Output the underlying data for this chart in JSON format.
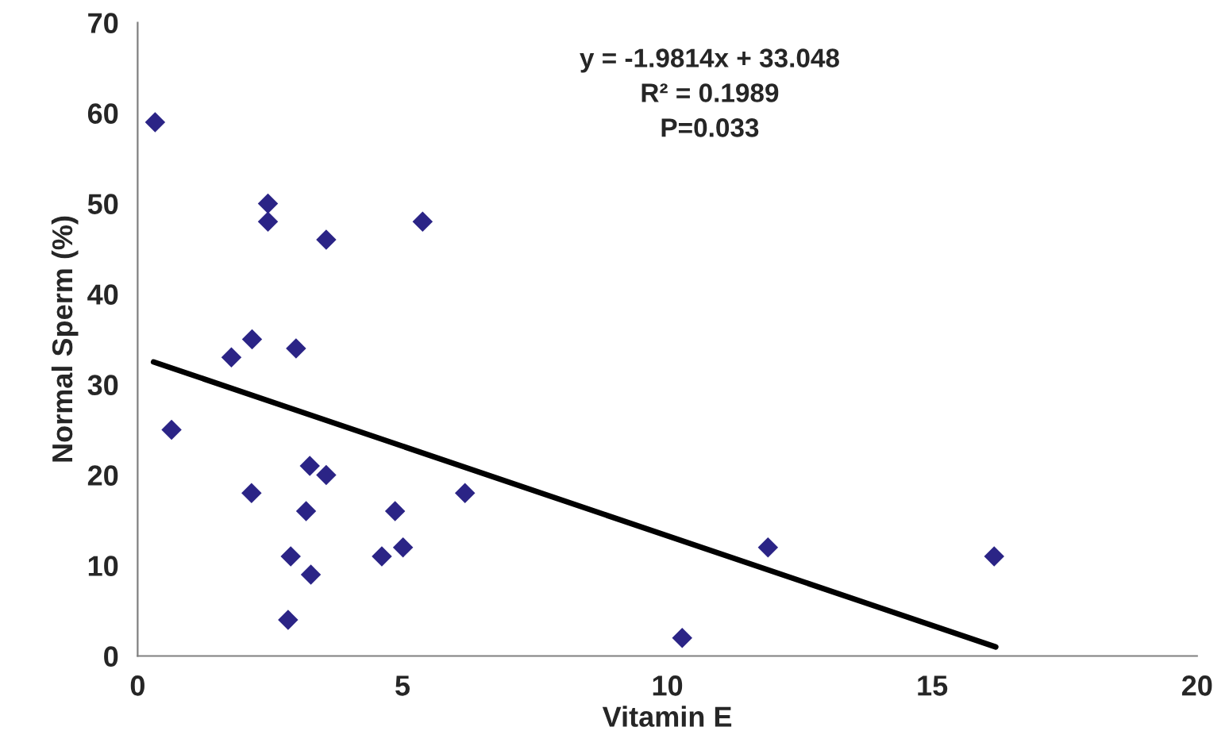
{
  "chart_data": {
    "type": "scatter",
    "xlabel": "Vitamin E",
    "ylabel": "Normal Sperm (%)",
    "xlim": [
      0,
      20
    ],
    "xticks": [
      0,
      5,
      10,
      15,
      20
    ],
    "ylim": [
      0,
      70
    ],
    "yticks": [
      0,
      10,
      20,
      30,
      40,
      50,
      60,
      70
    ],
    "grid": false,
    "marker": "diamond",
    "series": [
      {
        "color": "#2b2486",
        "x": [
          0.33,
          2.46,
          2.46,
          3.56,
          5.38,
          2.16,
          1.77,
          2.99,
          0.64,
          3.25,
          3.56,
          2.15,
          3.18,
          4.86,
          6.18,
          2.89,
          4.61,
          5.01,
          3.27,
          2.84,
          10.28,
          11.9,
          16.17
        ],
        "values": [
          59,
          50,
          48,
          46,
          48,
          35,
          33,
          34,
          25,
          21,
          20,
          18,
          16,
          16,
          18,
          11,
          11,
          12,
          9,
          4,
          2,
          12,
          11
        ]
      },
      {
        "type": "line",
        "color": "#000000",
        "marker": "none",
        "line_style": "solid",
        "x": [
          0.3,
          16.2
        ],
        "values": [
          32.5,
          1.0
        ]
      }
    ],
    "annotations": [
      "y = -1.9814x + 33.048",
      "R² = 0.1989",
      "P=0.033"
    ]
  }
}
